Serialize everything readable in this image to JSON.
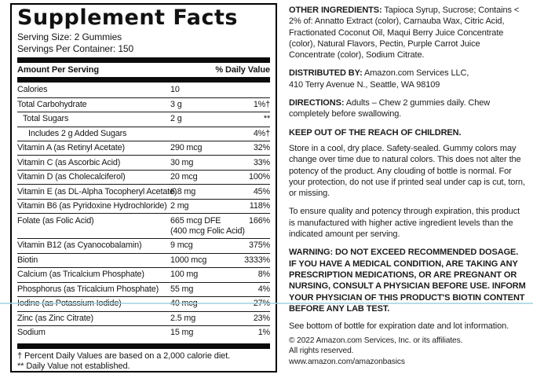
{
  "colors": {
    "panel_border": "#000000",
    "bar": "#0b0b0b",
    "text": "#151515",
    "artifact_line": "#9fd3de"
  },
  "panel": {
    "title": "Supplement Facts",
    "serving_size": "Serving Size: 2 Gummies",
    "servings_per_container": "Servings Per Container: 150",
    "header": {
      "amount": "Amount Per Serving",
      "dv": "% Daily Value"
    },
    "rows": [
      {
        "name": "Calories",
        "amount": "10",
        "dv": ""
      },
      {
        "name": "Total Carbohydrate",
        "amount": "3 g",
        "dv": "1%†"
      },
      {
        "name": "Total Sugars",
        "amount": "2 g",
        "dv": "**"
      },
      {
        "name": "Includes 2 g Added Sugars",
        "amount": "",
        "dv": "4%†"
      },
      {
        "name": "Vitamin A (as Retinyl Acetate)",
        "amount": "290 mcg",
        "dv": "32%"
      },
      {
        "name": "Vitamin C (as Ascorbic Acid)",
        "amount": "30 mg",
        "dv": "33%"
      },
      {
        "name": "Vitamin D (as Cholecalciferol)",
        "amount": "20 mcg",
        "dv": "100%"
      },
      {
        "name": "Vitamin E (as DL-Alpha Tocopheryl Acetate)",
        "amount": "6.8 mg",
        "dv": "45%"
      },
      {
        "name": "Vitamin B6 (as Pyridoxine Hydrochloride)",
        "amount": "2 mg",
        "dv": "118%"
      },
      {
        "name": "Folate (as Folic Acid)",
        "amount": "665 mcg DFE",
        "amount2": "(400 mcg Folic Acid)",
        "dv": "166%"
      },
      {
        "name": "Vitamin B12 (as Cyanocobalamin)",
        "amount": "9 mcg",
        "dv": "375%"
      },
      {
        "name": "Biotin",
        "amount": "1000 mcg",
        "dv": "3333%"
      },
      {
        "name": "Calcium (as Tricalcium Phosphate)",
        "amount": "100 mg",
        "dv": "8%"
      },
      {
        "name": "Phosphorus (as Tricalcium Phosphate)",
        "amount": "55 mg",
        "dv": "4%"
      },
      {
        "name": "Iodine (as Potassium Iodide)",
        "amount": "40 mcg",
        "dv": "27%"
      },
      {
        "name": "Zinc (as Zinc Citrate)",
        "amount": "2.5 mg",
        "dv": "23%"
      },
      {
        "name": "Sodium",
        "amount": "15 mg",
        "dv": "1%"
      }
    ],
    "footnotes": {
      "line1": "† Percent Daily Values are based on a 2,000 calorie diet.",
      "line2": "** Daily Value not established."
    }
  },
  "right": {
    "sections": [
      {
        "label": "OTHER INGREDIENTS:",
        "text": "Tapioca Syrup, Sucrose; Contains < 2% of: Annatto Extract (color), Carnauba Wax, Citric Acid, Fractionated Coconut Oil, Maqui Berry Juice Concentrate (color), Natural Flavors, Pectin, Purple Carrot Juice Concentrate (color), Sodium Citrate."
      },
      {
        "label": "DISTRIBUTED BY:",
        "text": "Amazon.com Services LLC,\n410 Terry Avenue N., Seattle, WA 98109"
      },
      {
        "label": "DIRECTIONS:",
        "text": "Adults – Chew 2 gummies daily. Chew completely before swallowing."
      },
      {
        "label": "KEEP OUT OF THE REACH OF CHILDREN.",
        "text": ""
      },
      {
        "label": "",
        "text": "Store in a cool, dry place. Safety-sealed. Gummy colors may change over time due to natural colors. This does not alter the potency of the product. Any clouding of bottle is normal. For your protection, do not use if printed seal under cap is cut, torn, or missing."
      },
      {
        "label": "",
        "text": "To ensure quality and potency through expiration, this product is manufactured with higher active ingredient levels than the indicated amount per serving."
      },
      {
        "label": "WARNING:",
        "text": "DO NOT EXCEED RECOMMENDED DOSAGE. IF YOU HAVE A MEDICAL CONDITION, ARE TAKING ANY PRESCRIPTION MEDICATIONS, OR ARE PREGNANT OR NURSING, CONSULT A PHYSICIAN BEFORE USE. INFORM YOUR PHYSICIAN OF THIS PRODUCT'S BIOTIN CONTENT BEFORE ANY LAB TEST."
      },
      {
        "label": "",
        "text": "See bottom of bottle for expiration date and lot information."
      },
      {
        "label": "",
        "text": "© 2022 Amazon.com Services, Inc. or its affiliates.\nAll rights reserved.\nwww.amazon.com/amazonbasics"
      }
    ]
  }
}
